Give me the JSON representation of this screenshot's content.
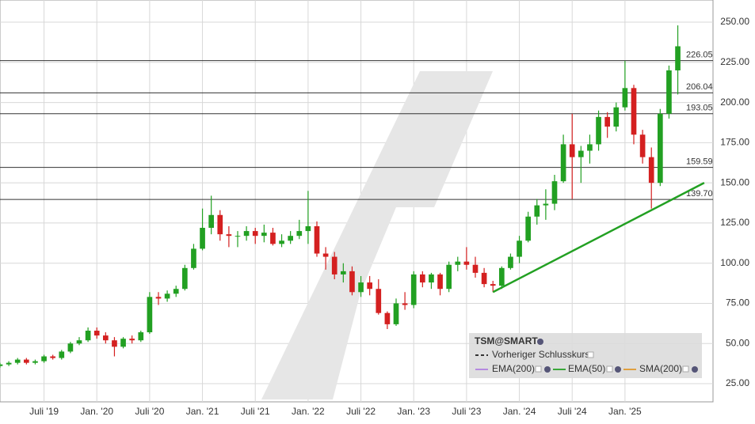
{
  "chart_data": {
    "type": "candlestick",
    "legend": {
      "title": "TSM@SMART",
      "items": [
        {
          "name": "Vorheriger Schlusskurs",
          "color": "#333333"
        },
        {
          "name": "EMA(200)",
          "color": "#b58ae0"
        },
        {
          "name": "EMA(50)",
          "color": "#3aa83a"
        },
        {
          "name": "SMA(200)",
          "color": "#e0a040"
        }
      ]
    },
    "up_color": "#22a022",
    "down_color": "#d42020",
    "x": [
      "2019-02",
      "2019-03",
      "2019-04",
      "2019-05",
      "2019-06",
      "2019-07",
      "2019-08",
      "2019-09",
      "2019-10",
      "2019-11",
      "2019-12",
      "2020-01",
      "2020-02",
      "2020-03",
      "2020-04",
      "2020-05",
      "2020-06",
      "2020-07",
      "2020-08",
      "2020-09",
      "2020-10",
      "2020-11",
      "2020-12",
      "2021-01",
      "2021-02",
      "2021-03",
      "2021-04",
      "2021-05",
      "2021-06",
      "2021-07",
      "2021-08",
      "2021-09",
      "2021-10",
      "2021-11",
      "2021-12",
      "2022-01",
      "2022-02",
      "2022-03",
      "2022-04",
      "2022-05",
      "2022-06",
      "2022-07",
      "2022-08",
      "2022-09",
      "2022-10",
      "2022-11",
      "2022-12",
      "2023-01",
      "2023-02",
      "2023-03",
      "2023-04",
      "2023-05",
      "2023-06",
      "2023-07",
      "2023-08",
      "2023-09",
      "2023-10",
      "2023-11",
      "2023-12",
      "2024-01",
      "2024-02",
      "2024-03",
      "2024-04",
      "2024-05",
      "2024-06",
      "2024-07",
      "2024-08",
      "2024-09",
      "2024-10",
      "2024-11",
      "2024-12",
      "2025-01",
      "2025-02",
      "2025-03",
      "2025-04",
      "2025-05",
      "2025-06",
      "2025-07"
    ],
    "open": [
      36,
      37,
      38,
      40,
      38,
      39,
      42,
      41,
      45,
      50,
      52,
      58,
      55,
      52,
      48,
      53,
      52,
      57,
      79,
      78,
      81,
      84,
      97,
      109,
      122,
      130,
      118,
      117,
      117,
      120,
      117,
      119,
      112,
      114,
      117,
      120,
      123,
      106,
      104,
      93,
      95,
      82,
      88,
      84,
      69,
      62,
      75,
      74,
      93,
      88,
      93,
      84,
      99,
      101,
      99,
      94,
      87,
      86,
      97,
      104,
      114,
      129,
      136,
      137,
      151,
      174,
      166,
      170,
      174,
      191,
      185,
      197,
      209,
      180,
      166,
      150,
      193,
      220
    ],
    "high": [
      38,
      39,
      41,
      41,
      40,
      43,
      43,
      46,
      51,
      54,
      60,
      60,
      57,
      54,
      54,
      55,
      58,
      82,
      82,
      83,
      86,
      99,
      112,
      134,
      142,
      133,
      123,
      120,
      123,
      122,
      124,
      122,
      118,
      120,
      127,
      145,
      126,
      110,
      107,
      100,
      98,
      92,
      92,
      90,
      70,
      78,
      82,
      95,
      95,
      94,
      94,
      101,
      104,
      110,
      104,
      97,
      89,
      98,
      106,
      117,
      132,
      140,
      146,
      155,
      180,
      193,
      173,
      180,
      195,
      194,
      200,
      226,
      211,
      183,
      172,
      196,
      223,
      248
    ],
    "low": [
      35,
      36,
      37,
      37,
      37,
      38,
      40,
      40,
      44,
      49,
      51,
      53,
      50,
      42,
      47,
      50,
      51,
      56,
      74,
      76,
      79,
      83,
      96,
      108,
      118,
      114,
      110,
      110,
      114,
      112,
      113,
      111,
      110,
      112,
      115,
      112,
      104,
      96,
      90,
      88,
      80,
      79,
      80,
      68,
      59,
      61,
      71,
      72,
      85,
      84,
      80,
      82,
      95,
      96,
      91,
      85,
      82,
      84,
      96,
      100,
      113,
      124,
      127,
      133,
      150,
      140,
      150,
      162,
      170,
      178,
      182,
      195,
      174,
      162,
      134,
      148,
      190,
      205
    ],
    "close": [
      37,
      38,
      40,
      38,
      39,
      42,
      41,
      45,
      50,
      52,
      58,
      55,
      52,
      48,
      53,
      52,
      57,
      79,
      78,
      81,
      84,
      97,
      109,
      122,
      130,
      118,
      117,
      117,
      120,
      117,
      119,
      112,
      114,
      117,
      120,
      123,
      106,
      104,
      93,
      95,
      82,
      88,
      84,
      69,
      62,
      75,
      74,
      93,
      88,
      93,
      84,
      99,
      101,
      99,
      94,
      87,
      86,
      97,
      104,
      114,
      129,
      136,
      137,
      151,
      174,
      166,
      170,
      174,
      191,
      185,
      197,
      209,
      180,
      166,
      150,
      193,
      220,
      235
    ],
    "levels": [
      {
        "value": 226.05,
        "label": "226.05"
      },
      {
        "value": 206.04,
        "label": "206.04"
      },
      {
        "value": 193.05,
        "label": "193.05"
      },
      {
        "value": 159.59,
        "label": "159.59"
      },
      {
        "value": 139.7,
        "label": "139.70"
      }
    ],
    "trendline": {
      "color": "#22a022",
      "x": [
        "2023-10",
        "2025-10"
      ],
      "values": [
        82,
        150
      ]
    },
    "xlim": [
      "2019-02",
      "2025-11"
    ],
    "xticks": [
      {
        "value": "2019-07",
        "label": "Juli '19"
      },
      {
        "value": "2020-01",
        "label": "Jan. '20"
      },
      {
        "value": "2020-07",
        "label": "Juli '20"
      },
      {
        "value": "2021-01",
        "label": "Jan. '21"
      },
      {
        "value": "2021-07",
        "label": "Juli '21"
      },
      {
        "value": "2022-01",
        "label": "Jan. '22"
      },
      {
        "value": "2022-07",
        "label": "Juli '22"
      },
      {
        "value": "2023-01",
        "label": "Jan. '23"
      },
      {
        "value": "2023-07",
        "label": "Juli '23"
      },
      {
        "value": "2024-01",
        "label": "Jan. '24"
      },
      {
        "value": "2024-07",
        "label": "Juli '24"
      },
      {
        "value": "2025-01",
        "label": "Jan. '25"
      }
    ],
    "ylim": [
      13.7,
      263.8
    ],
    "yticks": [
      {
        "value": 25,
        "label": "25.00"
      },
      {
        "value": 50,
        "label": "50.00"
      },
      {
        "value": 75,
        "label": "75.00"
      },
      {
        "value": 100,
        "label": "100.00"
      },
      {
        "value": 125,
        "label": "125.00"
      },
      {
        "value": 150,
        "label": "150.00"
      },
      {
        "value": 175,
        "label": "175.00"
      },
      {
        "value": 200,
        "label": "200.00"
      },
      {
        "value": 225,
        "label": "225.00"
      },
      {
        "value": 250,
        "label": "250.00"
      }
    ],
    "grid": true
  }
}
